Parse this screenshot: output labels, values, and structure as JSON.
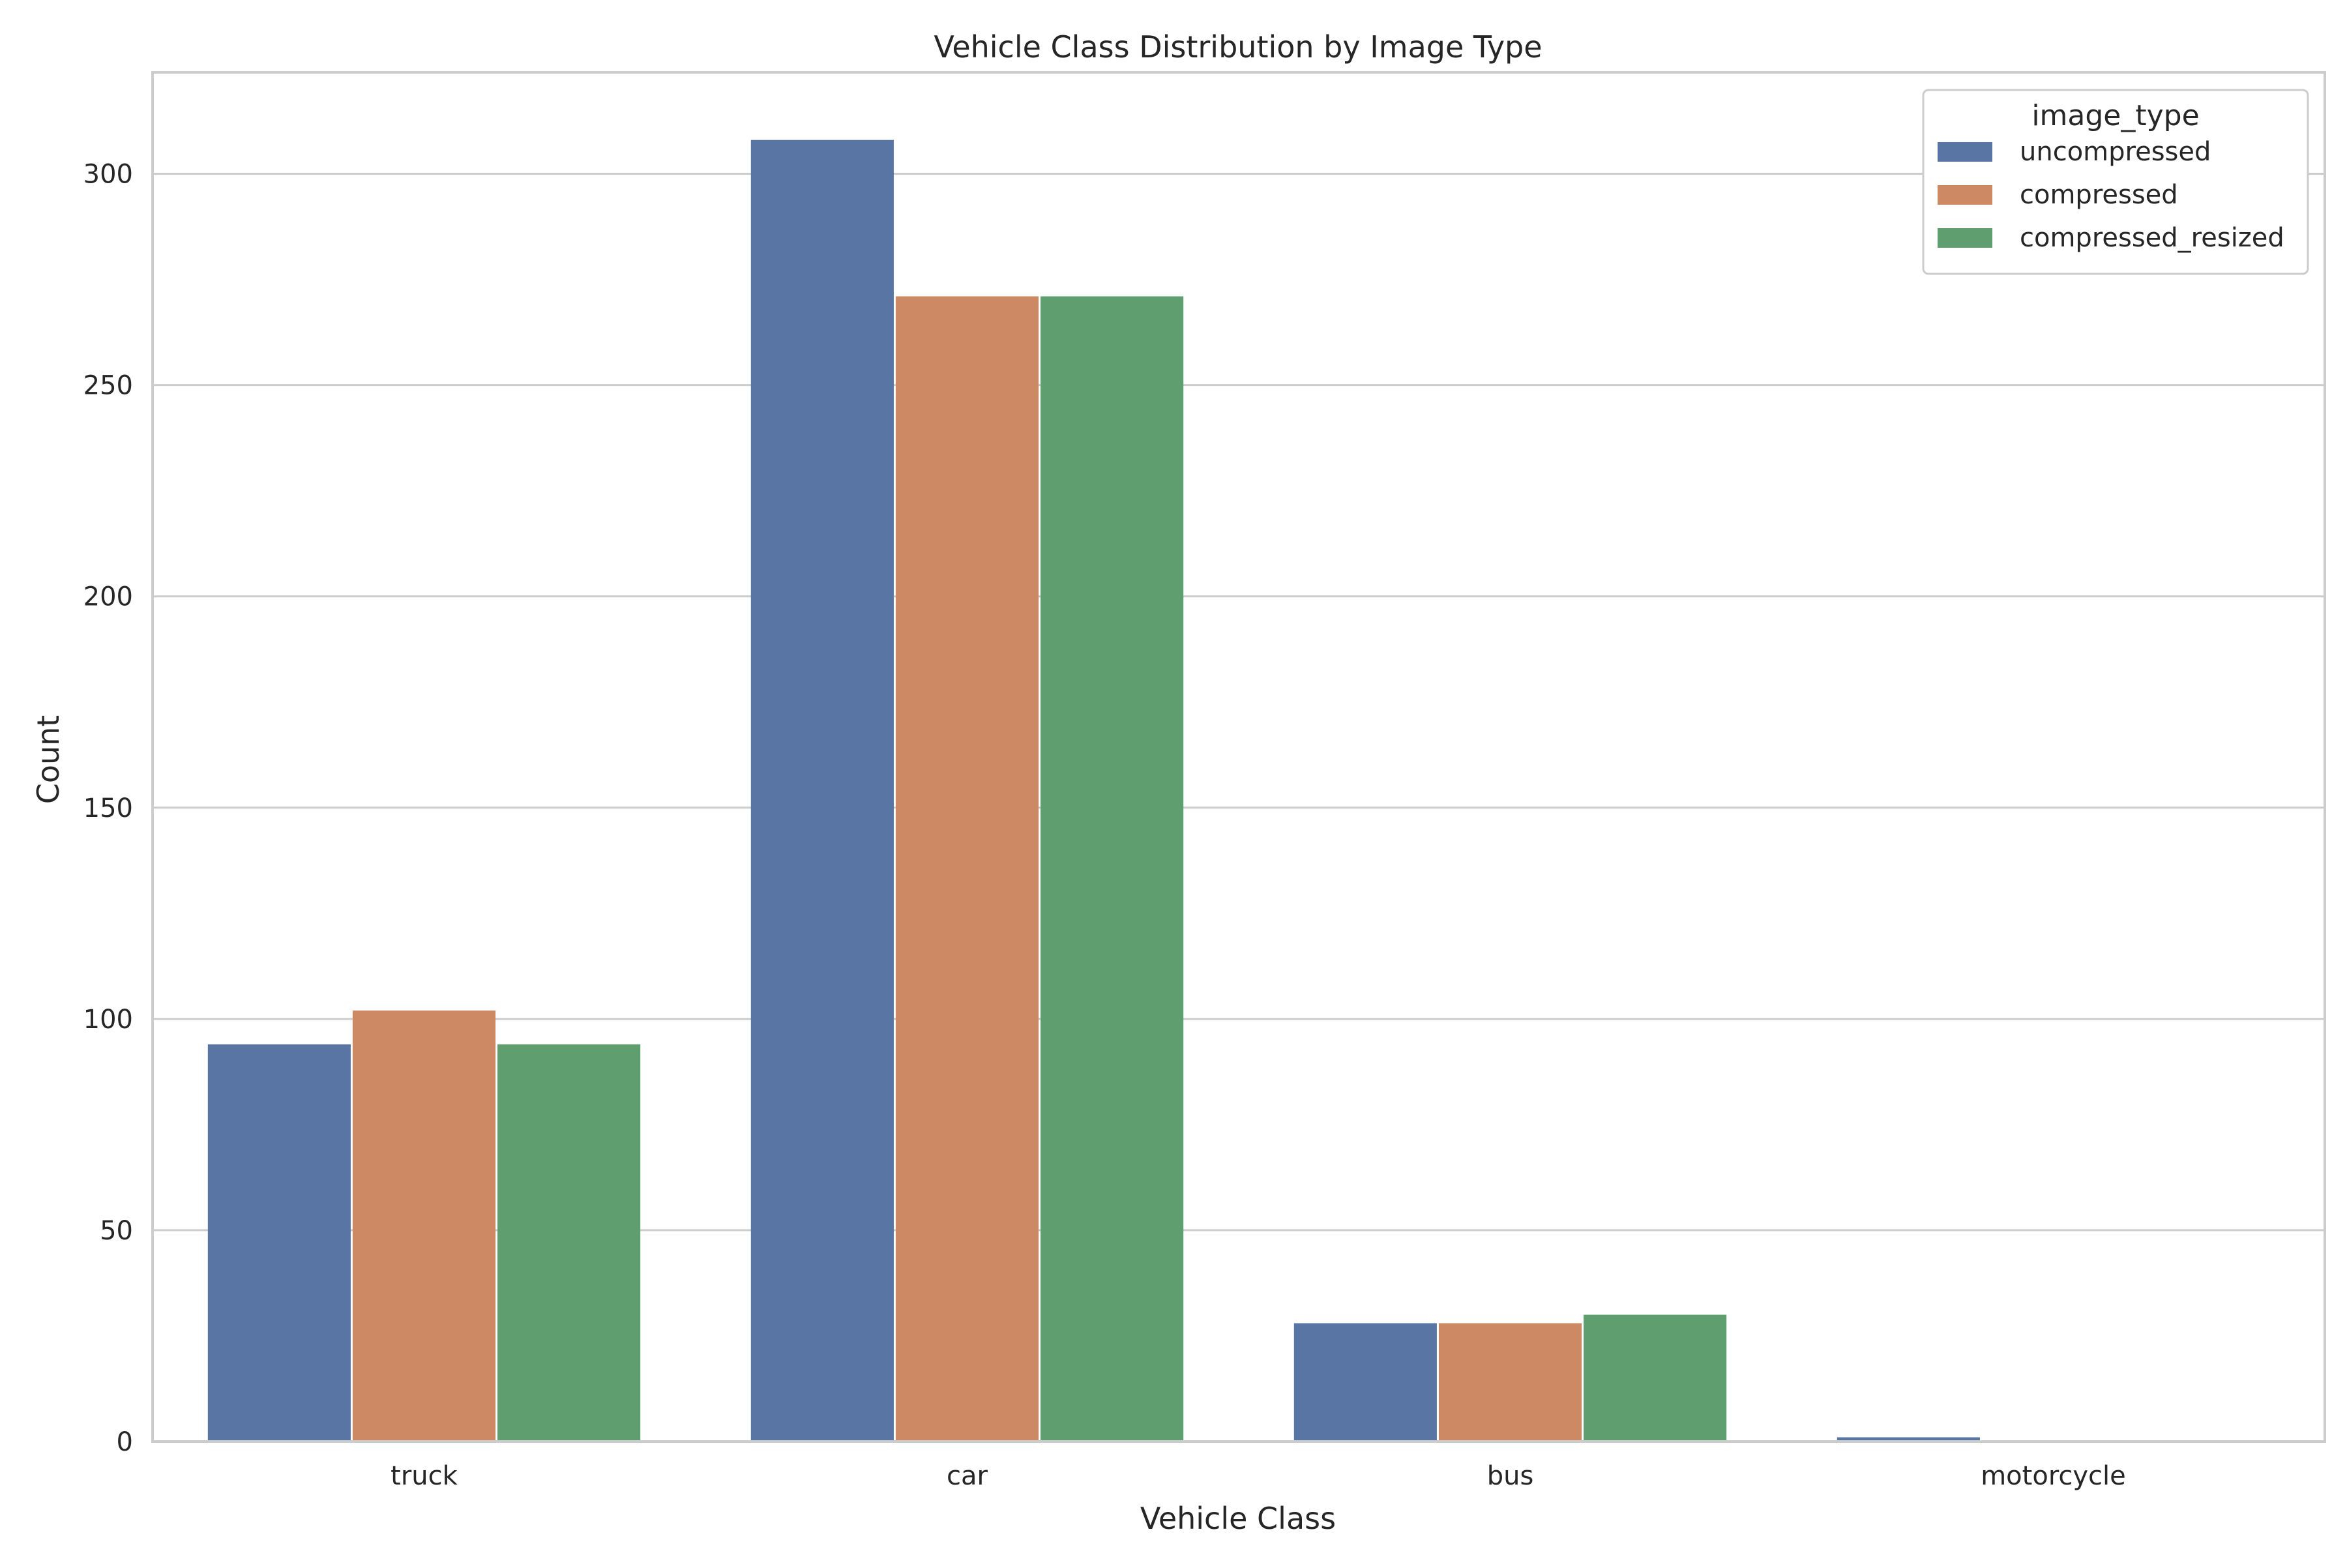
{
  "chart_data": {
    "type": "bar",
    "title": "Vehicle Class Distribution by Image Type",
    "xlabel": "Vehicle Class",
    "ylabel": "Count",
    "categories": [
      "truck",
      "car",
      "bus",
      "motorcycle"
    ],
    "series": [
      {
        "name": "uncompressed",
        "color": "#5875a4",
        "values": [
          94,
          308,
          28,
          1
        ]
      },
      {
        "name": "compressed",
        "color": "#cc8963",
        "values": [
          102,
          271,
          28,
          0
        ]
      },
      {
        "name": "compressed_resized",
        "color": "#5f9e6e",
        "values": [
          94,
          271,
          30,
          0
        ]
      }
    ],
    "ylim": [
      0,
      324
    ],
    "yticks": [
      0,
      50,
      100,
      150,
      200,
      250,
      300
    ],
    "grid": "horizontal",
    "legend": {
      "title": "image_type",
      "position": "top-right"
    }
  }
}
